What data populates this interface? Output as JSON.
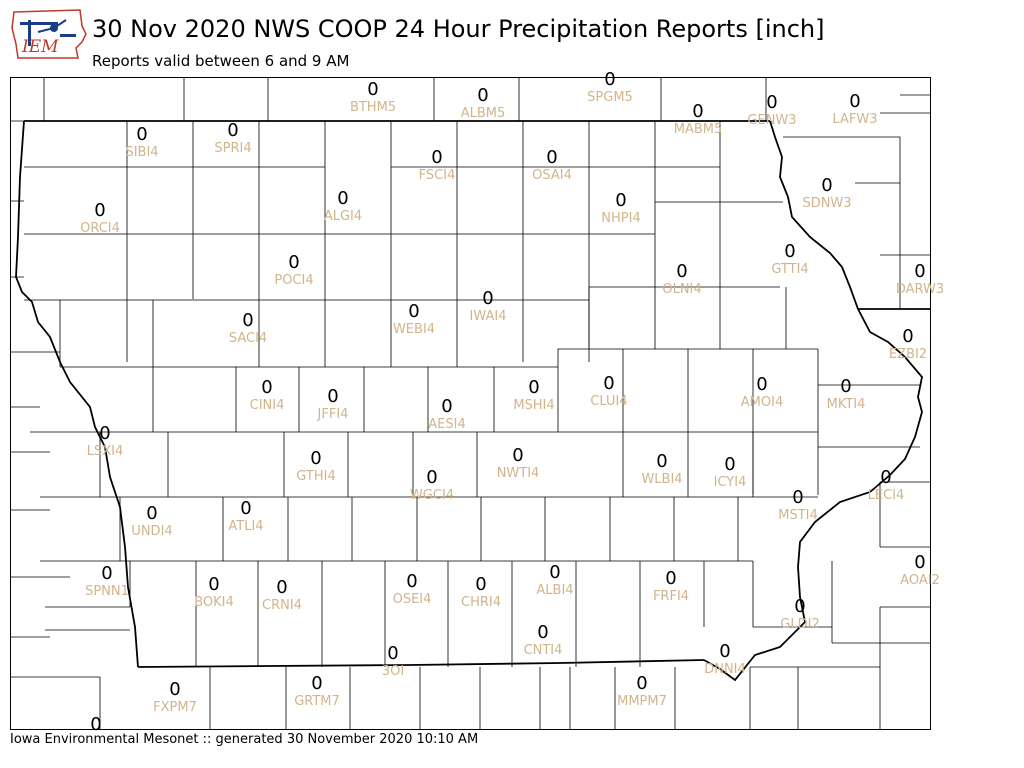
{
  "logo": {
    "text": "IEM"
  },
  "header": {
    "title": "30 Nov 2020 NWS COOP 24 Hour Precipitation Reports [inch]",
    "subtitle": "Reports valid between 6 and 9 AM"
  },
  "footer": {
    "text": "Iowa Environmental Mesonet :: generated 30 November 2020 10:10 AM"
  },
  "colors": {
    "station_label": "#d2b48c",
    "value_text": "#000000",
    "county_lines": "#000000",
    "state_lines": "#000000"
  },
  "stations": [
    {
      "id": "BTHM5",
      "value": "0"
    },
    {
      "id": "ALBM5",
      "value": "0"
    },
    {
      "id": "SPGM5",
      "value": "0"
    },
    {
      "id": "MABM5",
      "value": "0"
    },
    {
      "id": "GENW3",
      "value": "0"
    },
    {
      "id": "LAFW3",
      "value": "0"
    },
    {
      "id": "SIBI4",
      "value": "0"
    },
    {
      "id": "SPRI4",
      "value": "0"
    },
    {
      "id": "FSCI4",
      "value": "0"
    },
    {
      "id": "OSAI4",
      "value": "0"
    },
    {
      "id": "SDNW3",
      "value": "0"
    },
    {
      "id": "ORCI4",
      "value": "0"
    },
    {
      "id": "ALGI4",
      "value": "0"
    },
    {
      "id": "NHPI4",
      "value": "0"
    },
    {
      "id": "GTTI4",
      "value": "0"
    },
    {
      "id": "POCI4",
      "value": "0"
    },
    {
      "id": "OLNI4",
      "value": "0"
    },
    {
      "id": "DARW3",
      "value": "0"
    },
    {
      "id": "SACI4",
      "value": "0"
    },
    {
      "id": "WEBI4",
      "value": "0"
    },
    {
      "id": "IWAI4",
      "value": "0"
    },
    {
      "id": "EZBI2",
      "value": "0"
    },
    {
      "id": "CINI4",
      "value": "0"
    },
    {
      "id": "JFFI4",
      "value": "0"
    },
    {
      "id": "MSHI4",
      "value": "0"
    },
    {
      "id": "CLUI4",
      "value": "0"
    },
    {
      "id": "AMOI4",
      "value": "0"
    },
    {
      "id": "MKTI4",
      "value": "0"
    },
    {
      "id": "AESI4",
      "value": "0"
    },
    {
      "id": "LSXI4",
      "value": "0"
    },
    {
      "id": "GTHI4",
      "value": "0"
    },
    {
      "id": "NWTI4",
      "value": "0"
    },
    {
      "id": "WLBI4",
      "value": "0"
    },
    {
      "id": "ICYI4",
      "value": "0"
    },
    {
      "id": "LECI4",
      "value": "0"
    },
    {
      "id": "WGCI4",
      "value": "0"
    },
    {
      "id": "ATLI4",
      "value": "0"
    },
    {
      "id": "MSTI4",
      "value": "0"
    },
    {
      "id": "UNDI4",
      "value": "0"
    },
    {
      "id": "AOAI2",
      "value": "0"
    },
    {
      "id": "SPNN1",
      "value": "0"
    },
    {
      "id": "BOKI4",
      "value": "0"
    },
    {
      "id": "CRNI4",
      "value": "0"
    },
    {
      "id": "OSEI4",
      "value": "0"
    },
    {
      "id": "CHRI4",
      "value": "0"
    },
    {
      "id": "ALBI4",
      "value": "0"
    },
    {
      "id": "FRFI4",
      "value": "0"
    },
    {
      "id": "GLDI2",
      "value": "0"
    },
    {
      "id": "CNTI4",
      "value": "0"
    },
    {
      "id": "3OI",
      "value": "0"
    },
    {
      "id": "DNNI4",
      "value": "0"
    },
    {
      "id": "FXPM7",
      "value": "0"
    },
    {
      "id": "GRTM7",
      "value": "0"
    },
    {
      "id": "MMPM7",
      "value": "0"
    },
    {
      "id": "",
      "value": "0"
    }
  ]
}
